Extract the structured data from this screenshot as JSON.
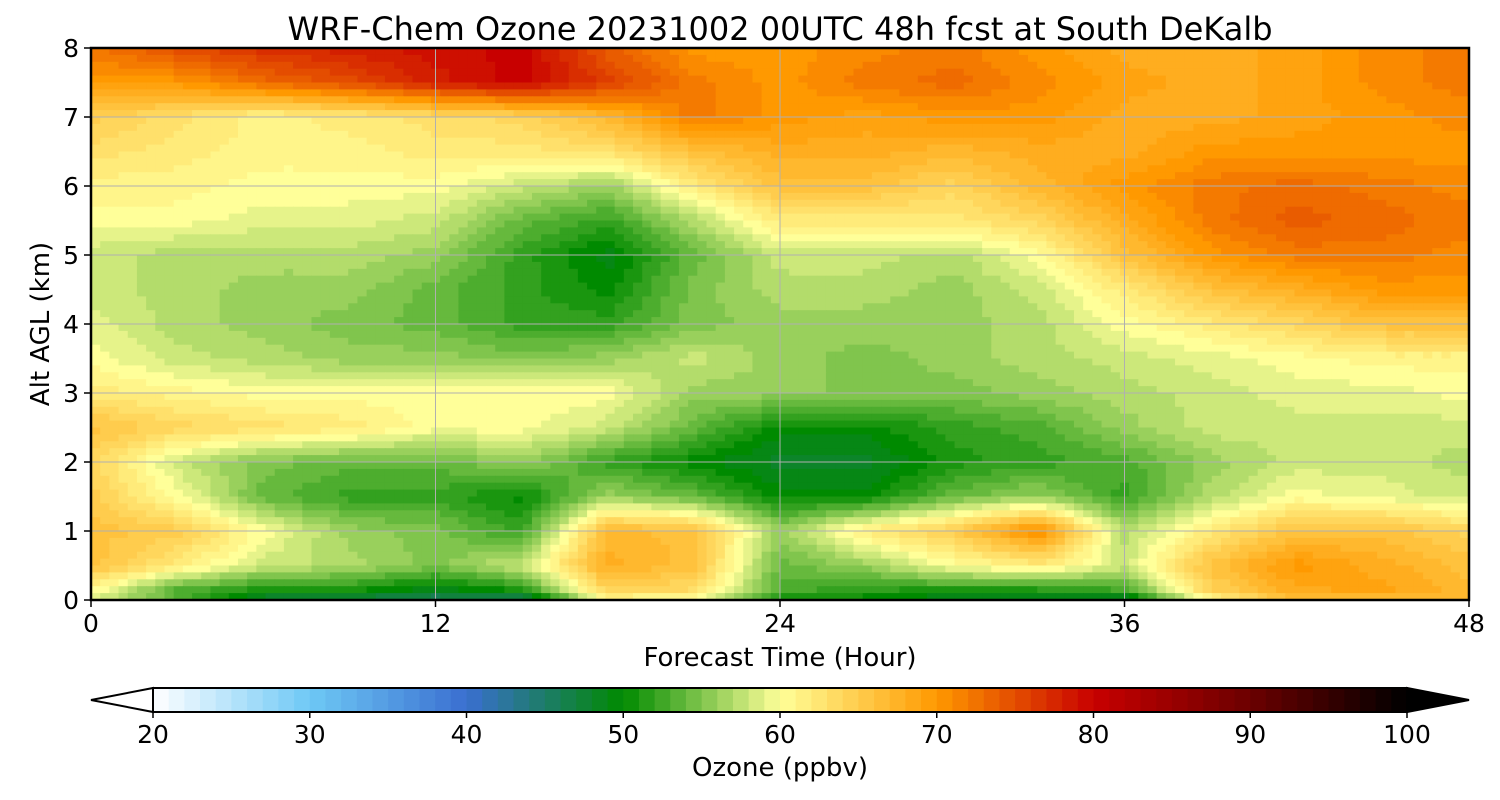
{
  "chart_data": {
    "type": "heatmap",
    "title": "WRF-Chem Ozone  20231002 00UTC 48h fcst at South DeKalb",
    "xlabel": "Forecast Time (Hour)",
    "ylabel": "Alt AGL (km)",
    "xlim": [
      0,
      48
    ],
    "ylim": [
      0,
      8
    ],
    "xticks": [
      "0",
      "12",
      "24",
      "36",
      "48"
    ],
    "yticks": [
      "0",
      "1",
      "2",
      "3",
      "4",
      "5",
      "6",
      "7",
      "8"
    ],
    "grid": true,
    "x": [
      0,
      3,
      6,
      9,
      12,
      15,
      18,
      21,
      24,
      27,
      30,
      33,
      36,
      39,
      42,
      45,
      48
    ],
    "y": [
      0,
      0.1,
      0.5,
      1,
      1.5,
      2,
      2.5,
      3,
      3.5,
      4,
      4.5,
      5,
      5.5,
      6,
      6.5,
      7,
      7.5,
      8
    ],
    "z": [
      [
        58,
        55,
        47,
        46,
        45,
        44,
        60,
        58,
        50,
        50,
        48,
        48,
        46,
        60,
        66,
        66,
        66
      ],
      [
        60,
        52,
        50,
        50,
        48,
        50,
        64,
        63,
        53,
        51,
        50,
        50,
        52,
        64,
        68,
        69,
        67
      ],
      [
        66,
        62,
        58,
        57,
        55,
        58,
        68,
        66,
        54,
        56,
        60,
        62,
        58,
        66,
        70,
        68,
        66
      ],
      [
        66,
        65,
        60,
        56,
        55,
        52,
        67,
        66,
        56,
        62,
        65,
        71,
        57,
        62,
        66,
        66,
        64
      ],
      [
        65,
        60,
        54,
        52,
        52,
        50,
        56,
        54,
        50,
        50,
        54,
        56,
        52,
        57,
        60,
        59,
        58
      ],
      [
        64,
        58,
        55,
        54,
        54,
        56,
        52,
        50,
        48,
        48,
        51,
        52,
        53,
        56,
        58,
        58,
        57
      ],
      [
        66,
        64,
        63,
        62,
        60,
        60,
        58,
        54,
        50,
        50,
        52,
        53,
        56,
        58,
        58,
        58,
        58
      ],
      [
        62,
        61,
        60,
        60,
        60,
        60,
        60,
        56,
        56,
        55,
        55,
        56,
        57,
        58,
        59,
        59,
        60
      ],
      [
        60,
        58,
        57,
        56,
        56,
        55,
        56,
        58,
        56,
        55,
        56,
        57,
        58,
        59,
        60,
        61,
        61
      ],
      [
        59,
        57,
        56,
        55,
        54,
        52,
        52,
        55,
        56,
        56,
        56,
        57,
        60,
        62,
        64,
        66,
        66
      ],
      [
        58,
        57,
        56,
        56,
        54,
        52,
        50,
        55,
        57,
        57,
        56,
        58,
        62,
        66,
        68,
        70,
        70
      ],
      [
        58,
        57,
        57,
        57,
        56,
        52,
        49,
        54,
        58,
        58,
        57,
        60,
        66,
        70,
        72,
        72,
        71
      ],
      [
        60,
        60,
        59,
        59,
        58,
        54,
        52,
        57,
        62,
        62,
        62,
        64,
        68,
        72,
        74,
        73,
        72
      ],
      [
        61,
        61,
        60,
        60,
        60,
        58,
        56,
        62,
        66,
        66,
        64,
        67,
        70,
        72,
        73,
        72,
        71
      ],
      [
        63,
        62,
        61,
        61,
        62,
        62,
        63,
        66,
        68,
        68,
        67,
        68,
        68,
        70,
        70,
        70,
        70
      ],
      [
        65,
        63,
        61,
        62,
        63,
        64,
        67,
        72,
        70,
        69,
        70,
        70,
        68,
        68,
        69,
        70,
        71
      ],
      [
        70,
        70,
        73,
        75,
        78,
        80,
        76,
        72,
        70,
        72,
        73,
        71,
        69,
        68,
        69,
        71,
        72
      ],
      [
        72,
        75,
        77,
        78,
        79,
        80,
        74,
        70,
        70,
        71,
        72,
        70,
        68,
        68,
        69,
        71,
        72
      ]
    ],
    "colorbar": {
      "label": "Ozone  (ppbv)",
      "ticks": [
        "20",
        "30",
        "40",
        "50",
        "60",
        "70",
        "80",
        "90",
        "100"
      ],
      "min": 20,
      "max": 100,
      "extend": "both",
      "stops": [
        [
          20,
          "#ffffff"
        ],
        [
          30,
          "#6ec8f5"
        ],
        [
          40,
          "#3a6fd0"
        ],
        [
          50,
          "#008a00"
        ],
        [
          60,
          "#ffff99"
        ],
        [
          70,
          "#ff9900"
        ],
        [
          80,
          "#c80000"
        ],
        [
          90,
          "#6b0000"
        ],
        [
          100,
          "#000000"
        ]
      ]
    }
  }
}
